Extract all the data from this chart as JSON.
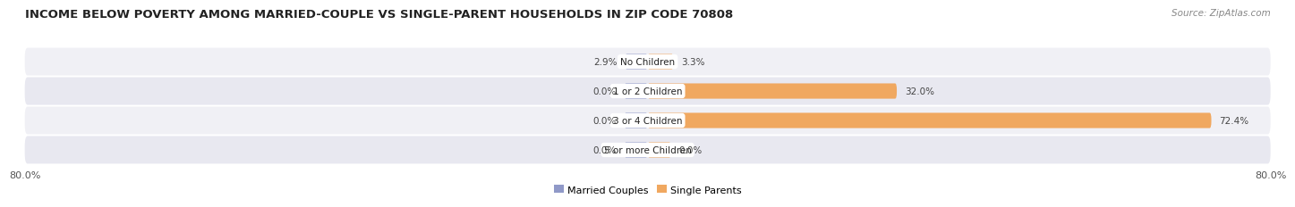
{
  "title": "INCOME BELOW POVERTY AMONG MARRIED-COUPLE VS SINGLE-PARENT HOUSEHOLDS IN ZIP CODE 70808",
  "source": "Source: ZipAtlas.com",
  "categories": [
    "No Children",
    "1 or 2 Children",
    "3 or 4 Children",
    "5 or more Children"
  ],
  "married_values": [
    2.9,
    0.0,
    0.0,
    0.0
  ],
  "single_values": [
    3.3,
    32.0,
    72.4,
    0.0
  ],
  "married_color": "#9099c8",
  "single_color": "#f0a860",
  "row_bg_even": "#f0f0f5",
  "row_bg_odd": "#e8e8f0",
  "bg_color": "#ffffff",
  "axis_min": -80.0,
  "axis_max": 80.0,
  "legend_labels": [
    "Married Couples",
    "Single Parents"
  ],
  "title_fontsize": 9.5,
  "source_fontsize": 7.5,
  "label_fontsize": 7.5,
  "tick_fontsize": 8,
  "bar_height": 0.52,
  "label_padding": 12
}
